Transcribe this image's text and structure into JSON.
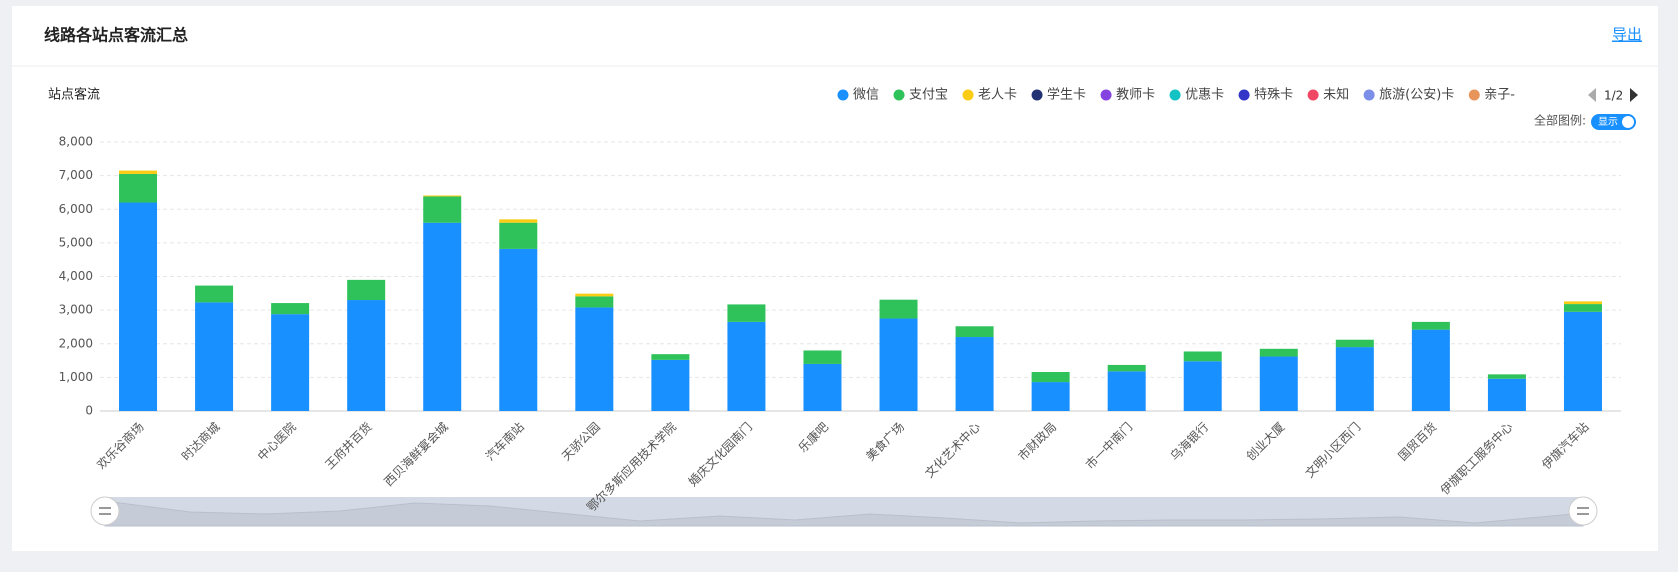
{
  "header": {
    "title": "线路各站点客流汇总",
    "export": "导出"
  },
  "chart_data": {
    "type": "bar",
    "stacked": true,
    "title": "站点客流",
    "categories": [
      "欢乐谷商场",
      "时达商城",
      "中心医院",
      "王府井百货",
      "西贝海鲜宴会城",
      "汽车南站",
      "天骄公园",
      "鄂尔多斯应用技术学院",
      "婚庆文化园南门",
      "乐康吧",
      "美食广场",
      "文化艺术中心",
      "市财政局",
      "市一中南门",
      "乌海银行",
      "创业大厦",
      "文明小区西门",
      "国贸百货",
      "伊旗职工服务中心",
      "伊旗汽车站"
    ],
    "series": [
      {
        "name": "微信",
        "color": "#1890ff",
        "values": [
          6200,
          3230,
          2880,
          3300,
          5600,
          4820,
          3080,
          1520,
          2650,
          1400,
          2750,
          2200,
          860,
          1180,
          1480,
          1620,
          1900,
          2420,
          960,
          2950
        ]
      },
      {
        "name": "支付宝",
        "color": "#2fc25b",
        "values": [
          850,
          500,
          330,
          600,
          780,
          780,
          330,
          170,
          520,
          400,
          560,
          320,
          300,
          190,
          290,
          230,
          220,
          230,
          130,
          230
        ]
      },
      {
        "name": "老人卡",
        "color": "#facc14",
        "values": [
          100,
          0,
          0,
          0,
          30,
          100,
          80,
          0,
          0,
          0,
          0,
          0,
          0,
          0,
          0,
          0,
          0,
          0,
          0,
          80
        ]
      },
      {
        "name": "学生卡",
        "color": "#223273",
        "values": [
          0,
          0,
          0,
          0,
          0,
          0,
          0,
          0,
          0,
          0,
          0,
          0,
          0,
          0,
          0,
          0,
          0,
          0,
          0,
          0
        ]
      },
      {
        "name": "教师卡",
        "color": "#8543e0",
        "values": [
          0,
          0,
          0,
          0,
          0,
          0,
          0,
          0,
          0,
          0,
          0,
          0,
          0,
          0,
          0,
          0,
          0,
          0,
          0,
          0
        ]
      },
      {
        "name": "优惠卡",
        "color": "#13c2c2",
        "values": [
          0,
          0,
          0,
          0,
          0,
          0,
          0,
          0,
          0,
          0,
          0,
          0,
          0,
          0,
          0,
          0,
          0,
          0,
          0,
          0
        ]
      },
      {
        "name": "特殊卡",
        "color": "#3436c7",
        "values": [
          0,
          0,
          0,
          0,
          0,
          0,
          0,
          0,
          0,
          0,
          0,
          0,
          0,
          0,
          0,
          0,
          0,
          0,
          0,
          0
        ]
      },
      {
        "name": "未知",
        "color": "#f04864",
        "values": [
          0,
          0,
          0,
          0,
          0,
          0,
          0,
          0,
          0,
          0,
          0,
          0,
          0,
          0,
          0,
          0,
          0,
          0,
          0,
          0
        ]
      },
      {
        "name": "旅游(公安)卡",
        "color": "#7b8ee8",
        "values": [
          0,
          0,
          0,
          0,
          0,
          0,
          0,
          0,
          0,
          0,
          0,
          0,
          0,
          0,
          0,
          0,
          0,
          0,
          0,
          0
        ]
      },
      {
        "name": "亲子-",
        "color": "#e8955c",
        "values": [
          0,
          0,
          0,
          0,
          0,
          0,
          0,
          0,
          0,
          0,
          0,
          0,
          0,
          0,
          0,
          0,
          0,
          0,
          0,
          0
        ]
      }
    ],
    "ylim": [
      0,
      8000
    ],
    "yticks": [
      {
        "value": 0,
        "label": "0"
      },
      {
        "value": 1000,
        "label": "1,000"
      },
      {
        "value": 2000,
        "label": "2,000"
      },
      {
        "value": 3000,
        "label": "3,000"
      },
      {
        "value": 4000,
        "label": "4,000"
      },
      {
        "value": 5000,
        "label": "5,000"
      },
      {
        "value": 6000,
        "label": "6,000"
      },
      {
        "value": 7000,
        "label": "7,000"
      },
      {
        "value": 8000,
        "label": "8,000"
      }
    ],
    "grid": true,
    "legend_page": "1/2",
    "legend_toggle_label": "全部图例:",
    "legend_toggle": "显示"
  }
}
